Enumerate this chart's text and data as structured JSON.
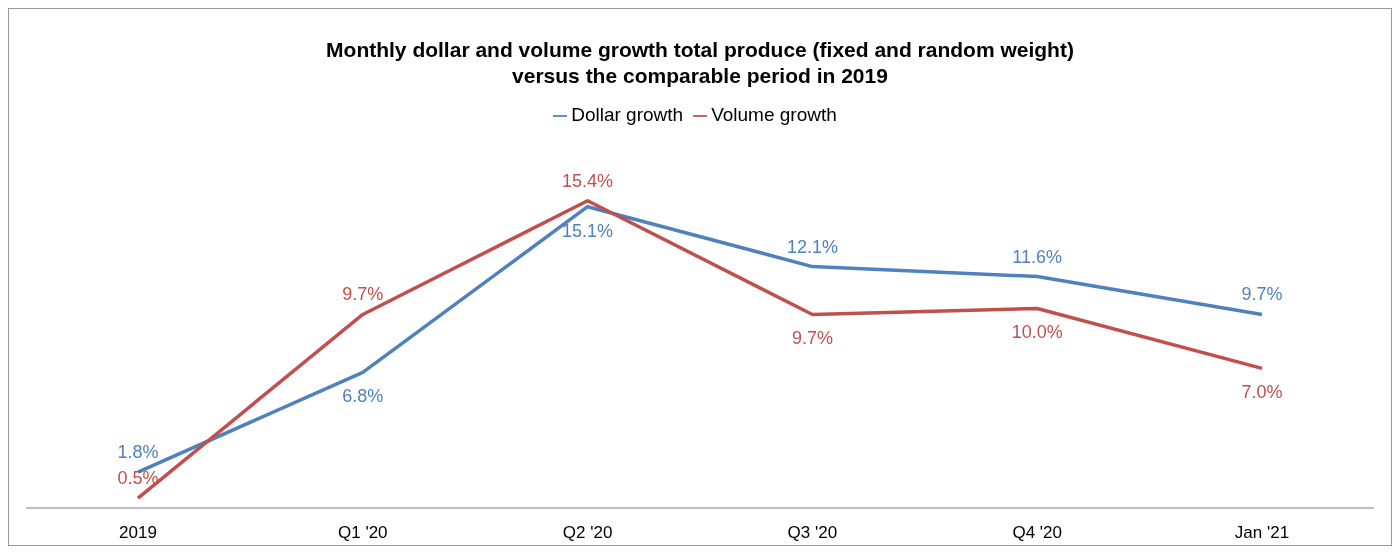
{
  "chart_data": {
    "type": "line",
    "title": "Monthly dollar and volume growth  total produce (fixed and random weight)\nversus the comparable period in 2019",
    "categories": [
      "2019",
      "Q1 '20",
      "Q2 '20",
      "Q3 '20",
      "Q4 '20",
      "Jan '21"
    ],
    "series": [
      {
        "name": "Dollar growth",
        "color": "#4f81bd",
        "values": [
          1.8,
          6.8,
          15.1,
          12.1,
          11.6,
          9.7
        ],
        "value_labels": [
          "1.8%",
          "6.8%",
          "15.1%",
          "12.1%",
          "11.6%",
          "9.7%"
        ]
      },
      {
        "name": "Volume growth",
        "color": "#c0504d",
        "values": [
          0.5,
          9.7,
          15.4,
          9.7,
          10.0,
          7.0
        ],
        "value_labels": [
          "0.5%",
          "9.7%",
          "15.4%",
          "9.7%",
          "10.0%",
          "7.0%"
        ]
      }
    ],
    "tick_labels": "x",
    "grid": false,
    "legend": "top",
    "marker": "none",
    "line_style": "solid"
  }
}
